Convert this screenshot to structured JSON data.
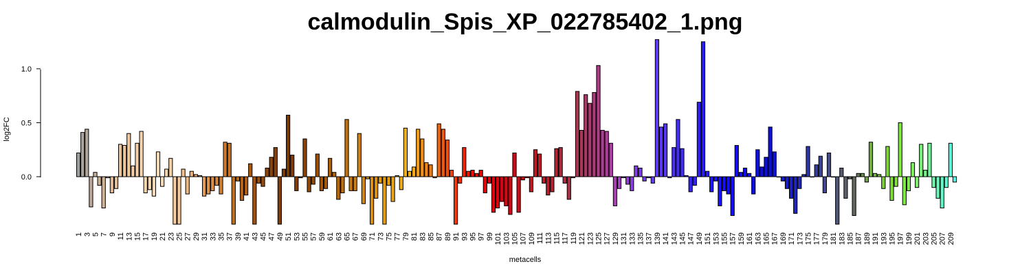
{
  "chart_data": {
    "type": "bar",
    "title": "calmodulin_Spis_XP_022785402_1.png",
    "xlabel": "metacells",
    "ylabel": "log2FC",
    "ylim": [
      -0.44,
      1.27
    ],
    "yticks": [
      0.0,
      0.5,
      1.0
    ],
    "ytick_labels": [
      "0.0",
      "0.5",
      "1.0"
    ],
    "x_tick_every": 2,
    "categories": [
      "1",
      "2",
      "3",
      "4",
      "5",
      "6",
      "7",
      "8",
      "9",
      "10",
      "11",
      "12",
      "13",
      "14",
      "15",
      "16",
      "17",
      "18",
      "19",
      "20",
      "21",
      "22",
      "23",
      "24",
      "25",
      "26",
      "27",
      "28",
      "29",
      "30",
      "31",
      "32",
      "33",
      "34",
      "35",
      "36",
      "37",
      "38",
      "39",
      "40",
      "41",
      "42",
      "43",
      "44",
      "45",
      "46",
      "47",
      "48",
      "49",
      "50",
      "51",
      "52",
      "53",
      "54",
      "55",
      "56",
      "57",
      "58",
      "59",
      "60",
      "61",
      "62",
      "63",
      "64",
      "65",
      "66",
      "67",
      "68",
      "69",
      "70",
      "71",
      "72",
      "73",
      "74",
      "75",
      "76",
      "77",
      "78",
      "79",
      "80",
      "81",
      "82",
      "83",
      "84",
      "85",
      "86",
      "87",
      "88",
      "89",
      "90",
      "91",
      "92",
      "93",
      "94",
      "95",
      "96",
      "97",
      "98",
      "99",
      "100",
      "101",
      "102",
      "103",
      "104",
      "105",
      "106",
      "107",
      "108",
      "109",
      "110",
      "111",
      "112",
      "113",
      "114",
      "115",
      "116",
      "117",
      "118",
      "119",
      "120",
      "121",
      "122",
      "123",
      "124",
      "125",
      "126",
      "127",
      "128",
      "129",
      "130",
      "131",
      "132",
      "133",
      "134",
      "135",
      "136",
      "137",
      "138",
      "139",
      "140",
      "141",
      "142",
      "143",
      "144",
      "145",
      "146",
      "147",
      "148",
      "149",
      "150",
      "151",
      "152",
      "153",
      "154",
      "155",
      "156",
      "157",
      "158",
      "159",
      "160",
      "161",
      "162",
      "163",
      "164",
      "165",
      "166",
      "167",
      "168",
      "169",
      "170",
      "171",
      "172",
      "173",
      "174",
      "175",
      "176",
      "177",
      "178",
      "179",
      "180",
      "181",
      "182",
      "183",
      "184",
      "185",
      "186",
      "187",
      "188",
      "189",
      "190",
      "191",
      "192",
      "193",
      "194",
      "195",
      "196",
      "197",
      "198",
      "199",
      "200",
      "201",
      "202",
      "203",
      "204",
      "205",
      "206",
      "207",
      "208",
      "209",
      "210"
    ],
    "values": [
      0.22,
      0.41,
      0.44,
      -0.28,
      0.04,
      -0.08,
      -0.29,
      -0.01,
      -0.15,
      -0.11,
      0.3,
      0.29,
      0.4,
      0.1,
      0.31,
      0.42,
      -0.15,
      -0.12,
      -0.18,
      0.23,
      -0.09,
      0.07,
      0.17,
      -0.44,
      -0.44,
      0.07,
      -0.16,
      0.05,
      0.02,
      0.01,
      -0.18,
      -0.16,
      -0.13,
      -0.08,
      -0.16,
      0.32,
      0.31,
      -0.44,
      -0.04,
      -0.22,
      -0.17,
      0.12,
      -0.44,
      -0.06,
      -0.09,
      0.08,
      0.18,
      0.27,
      -0.44,
      0.07,
      0.57,
      0.2,
      -0.13,
      -0.01,
      0.35,
      -0.14,
      -0.07,
      0.21,
      -0.13,
      -0.11,
      0.17,
      0.04,
      -0.21,
      -0.15,
      0.53,
      -0.13,
      -0.13,
      0.4,
      -0.25,
      -0.02,
      -0.44,
      -0.2,
      -0.06,
      -0.44,
      -0.08,
      -0.23,
      0.01,
      -0.12,
      0.45,
      0.05,
      0.09,
      0.44,
      0.35,
      0.13,
      0.11,
      -0.01,
      0.49,
      0.44,
      0.34,
      0.06,
      -0.44,
      -0.06,
      0.27,
      0.05,
      0.06,
      0.03,
      0.06,
      -0.15,
      -0.06,
      -0.33,
      -0.29,
      -0.23,
      -0.27,
      -0.35,
      0.22,
      -0.33,
      -0.03,
      -0.01,
      -0.14,
      0.25,
      0.21,
      -0.06,
      -0.17,
      -0.14,
      0.26,
      0.27,
      -0.06,
      -0.21,
      -0.01,
      0.79,
      0.43,
      0.76,
      0.68,
      0.78,
      1.03,
      0.43,
      0.42,
      0.31,
      -0.27,
      -0.11,
      -0.01,
      -0.07,
      -0.13,
      0.1,
      0.08,
      -0.04,
      -0.01,
      -0.06,
      1.27,
      0.46,
      0.49,
      -0.01,
      0.27,
      0.53,
      0.26,
      0.01,
      -0.14,
      -0.08,
      0.69,
      1.25,
      0.05,
      -0.14,
      -0.04,
      -0.27,
      -0.13,
      -0.16,
      -0.36,
      0.29,
      0.04,
      0.08,
      0.03,
      -0.16,
      0.25,
      0.09,
      0.18,
      0.46,
      0.23,
      0.0,
      -0.04,
      -0.11,
      -0.2,
      -0.34,
      -0.11,
      0.02,
      0.28,
      0.0,
      0.11,
      0.19,
      -0.15,
      0.22,
      0.0,
      -0.44,
      0.08,
      -0.2,
      -0.02,
      -0.36,
      0.03,
      0.03,
      -0.05,
      0.32,
      0.03,
      0.02,
      -0.11,
      0.28,
      -0.22,
      -0.09,
      0.5,
      -0.26,
      -0.13,
      0.13,
      -0.1,
      0.3,
      0.06,
      0.31,
      -0.1,
      -0.2,
      -0.29,
      -0.1,
      0.31,
      -0.05
    ],
    "colors": [
      "#9f9f9f",
      "#a9a39e",
      "#b3a79c",
      "#bda89a",
      "#c5ad98",
      "#cbb096",
      "#d1b396",
      "#d7b694",
      "#ddba95",
      "#e2be98",
      "#e8c29b",
      "#ecc59d",
      "#f0c8a0",
      "#f4cca5",
      "#f7d0a8",
      "#f9d3ac",
      "#fad7b0",
      "#fbd9b3",
      "#fbdbb6",
      "#fcdcb8",
      "#fcdcb8",
      "#fbd7b0",
      "#f9d1a7",
      "#f8cc9e",
      "#f6c796",
      "#f4c08c",
      "#f1b981",
      "#eeb277",
      "#eaaa6d",
      "#e6a363",
      "#e29c5a",
      "#de9550",
      "#da8e47",
      "#d5883f",
      "#d18136",
      "#cd7a2e",
      "#c77427",
      "#c16e21",
      "#bb681c",
      "#b56317",
      "#ae5d13",
      "#a85810",
      "#a2520e",
      "#9c4e0c",
      "#964a0b",
      "#904609",
      "#8a4308",
      "#854007",
      "#803d06",
      "#7b3a05",
      "#7a3a05",
      "#7d3c05",
      "#813e05",
      "#864106",
      "#8b4406",
      "#914807",
      "#964c07",
      "#9c5007",
      "#a25407",
      "#a85908",
      "#ad5e08",
      "#b36309",
      "#b8680a",
      "#bd6d0b",
      "#c1720c",
      "#c6770d",
      "#ca7c0e",
      "#ce810f",
      "#d28611",
      "#d68b12",
      "#d98f13",
      "#dc9414",
      "#df9815",
      "#e29c16",
      "#e5a017",
      "#e8a418",
      "#eba819",
      "#eeac1a",
      "#f1b01b",
      "#f3b31c",
      "#f4a81a",
      "#f49d17",
      "#f49115",
      "#f48612",
      "#f47a10",
      "#f36f0e",
      "#f3630c",
      "#f2580b",
      "#f24c09",
      "#f14108",
      "#f03607",
      "#ef2c06",
      "#ee2305",
      "#ec1b05",
      "#ea1305",
      "#e80d06",
      "#e60807",
      "#e40508",
      "#e2030a",
      "#e0020c",
      "#de020e",
      "#db0310",
      "#d80512",
      "#d50714",
      "#d20916",
      "#ce0c19",
      "#cb0e1b",
      "#c7111e",
      "#c31421",
      "#c01723",
      "#bc1a27",
      "#b91d2a",
      "#b6202e",
      "#b32332",
      "#b02636",
      "#ae2a3a",
      "#ac2d3f",
      "#aa3044",
      "#a93349",
      "#a8364f",
      "#a8375a",
      "#a93865",
      "#aa3970",
      "#ac3a7b",
      "#ad3b86",
      "#ae3c91",
      "#b03d9c",
      "#b13ea7",
      "#a93eb3",
      "#a13fbf",
      "#993fcb",
      "#913fd3",
      "#8940da",
      "#8240e0",
      "#7b40e5",
      "#743fe9",
      "#6d3eec",
      "#673cef",
      "#613af1",
      "#5b38f3",
      "#5536f5",
      "#4f33f6",
      "#4a31f7",
      "#452ef8",
      "#402bf9",
      "#3b28fa",
      "#3625fa",
      "#3222fa",
      "#2e1ffa",
      "#2a1cfa",
      "#2619fa",
      "#2216fa",
      "#1f14f9",
      "#1c12f8",
      "#1910f7",
      "#160ff6",
      "#140ef5",
      "#120df3",
      "#100cf1",
      "#0f0cef",
      "#0e0ced",
      "#0d0cea",
      "#0c0de7",
      "#0c0ee4",
      "#0d0fe0",
      "#0e11dc",
      "#1013d8",
      "#1216d3",
      "#1519ce",
      "#181dc9",
      "#1c21c3",
      "#2025bd",
      "#242ab7",
      "#292fb0",
      "#2e34aa",
      "#3339a3",
      "#383e9c",
      "#3d4395",
      "#42488e",
      "#474d87",
      "#4c5280",
      "#515779",
      "#565b72",
      "#5b606b",
      "#5f6464",
      "#63685d",
      "#677b55",
      "#6b8e4d",
      "#6f9f46",
      "#73ae40",
      "#77bb3c",
      "#7ac639",
      "#7ccf38",
      "#7ed738",
      "#7fdd3a",
      "#80e23d",
      "#80e742",
      "#80ea49",
      "#7fed52",
      "#7df05d",
      "#7bf26a",
      "#78f478",
      "#74f688",
      "#70f799",
      "#6bf8ab",
      "#66f9bd",
      "#60fac9",
      "#5bfbd4",
      "#55fcde",
      "#4ffde6",
      "#48fdee",
      "#40fef4",
      "#38fef8"
    ]
  }
}
